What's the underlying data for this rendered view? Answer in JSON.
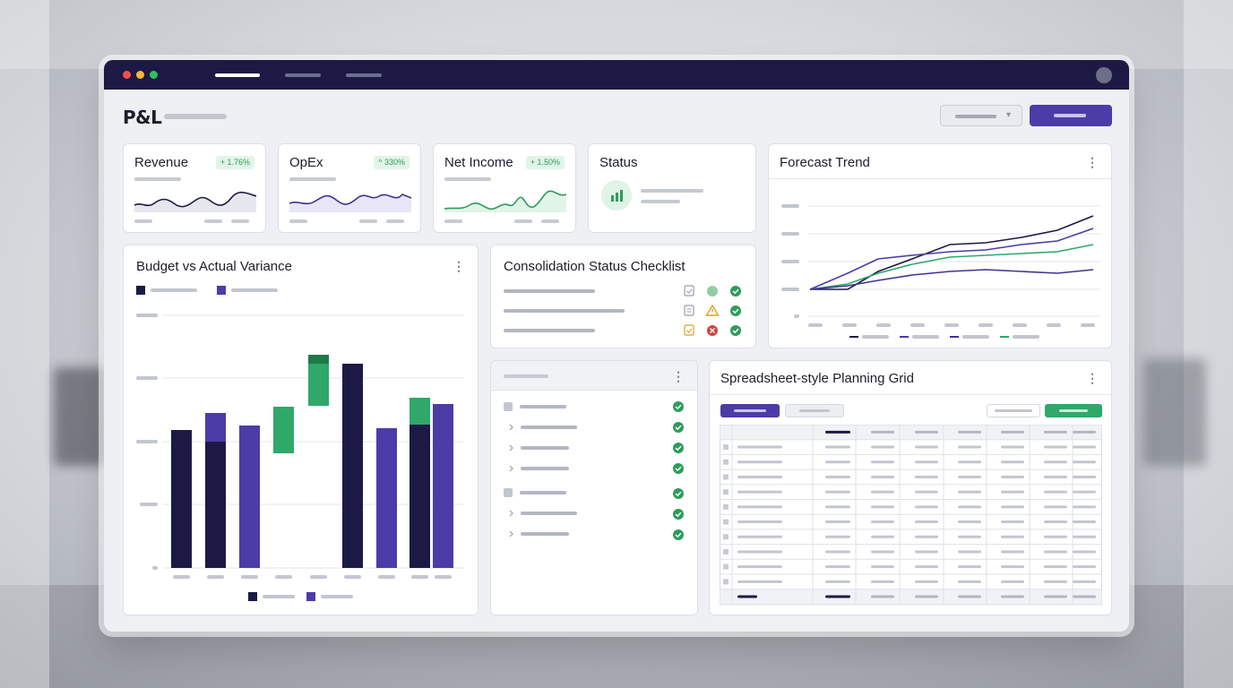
{
  "page": {
    "title": "P&L"
  },
  "kpis": [
    {
      "title": "Revenue",
      "badge": "+ 1.76%",
      "color": "#1c1a45",
      "fill": "#e6e7ee"
    },
    {
      "title": "OpEx",
      "badge": "^ 330%",
      "color": "#3d3591",
      "fill": "#e8e6f6"
    },
    {
      "title": "Net Income",
      "badge": "+ 1.50%",
      "color": "#2e9b5c",
      "fill": "#e1f4e8"
    }
  ],
  "status": {
    "title": "Status",
    "icon": "chart-bars-icon"
  },
  "forecast": {
    "title": "Forecast Trend"
  },
  "budget": {
    "title": "Budget vs Actual Variance"
  },
  "checklist": {
    "title": "Consolidation Status Checklist",
    "rows": [
      {
        "icons": [
          "clipboard-icon",
          "circle-icon",
          "check-icon"
        ]
      },
      {
        "icons": [
          "document-icon",
          "warning-icon",
          "check-icon"
        ]
      },
      {
        "icons": [
          "clipboard-icon",
          "error-icon",
          "check-icon"
        ]
      }
    ]
  },
  "grid": {
    "title": "Spreadsheet-style Planning Grid"
  },
  "colors": {
    "navy": "#1c1a45",
    "purple": "#4b3ca8",
    "green": "#2fa86a",
    "success": "#2e9b5c",
    "warning": "#e0a020",
    "error": "#d84040"
  }
}
